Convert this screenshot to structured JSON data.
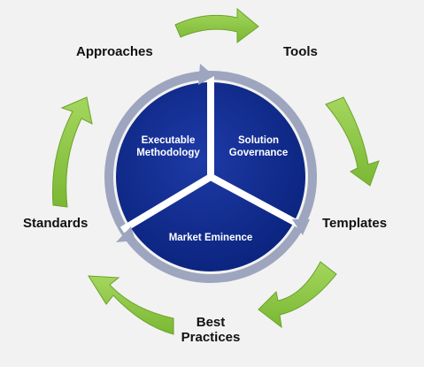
{
  "outer_labels": {
    "approaches": "Approaches",
    "tools": "Tools",
    "templates": "Templates",
    "best_practices_line1": "Best",
    "best_practices_line2": "Practices",
    "standards": "Standards"
  },
  "inner_segments": {
    "executable_line1": "Executable",
    "executable_line2": "Methodology",
    "solution_line1": "Solution",
    "solution_line2": "Governance",
    "market": "Market Eminence"
  },
  "colors": {
    "background": "#f2f2f2",
    "arrow_green": "#8cc63f",
    "arrow_green_dark": "#6da32a",
    "circle_blue": "#0e2a8c",
    "ring_gray": "#9ea5be",
    "divider": "#ffffff"
  },
  "icons": {
    "cycle_arrows": "curved-arrow-icon",
    "ring_arrows": "arrowhead-icon"
  }
}
